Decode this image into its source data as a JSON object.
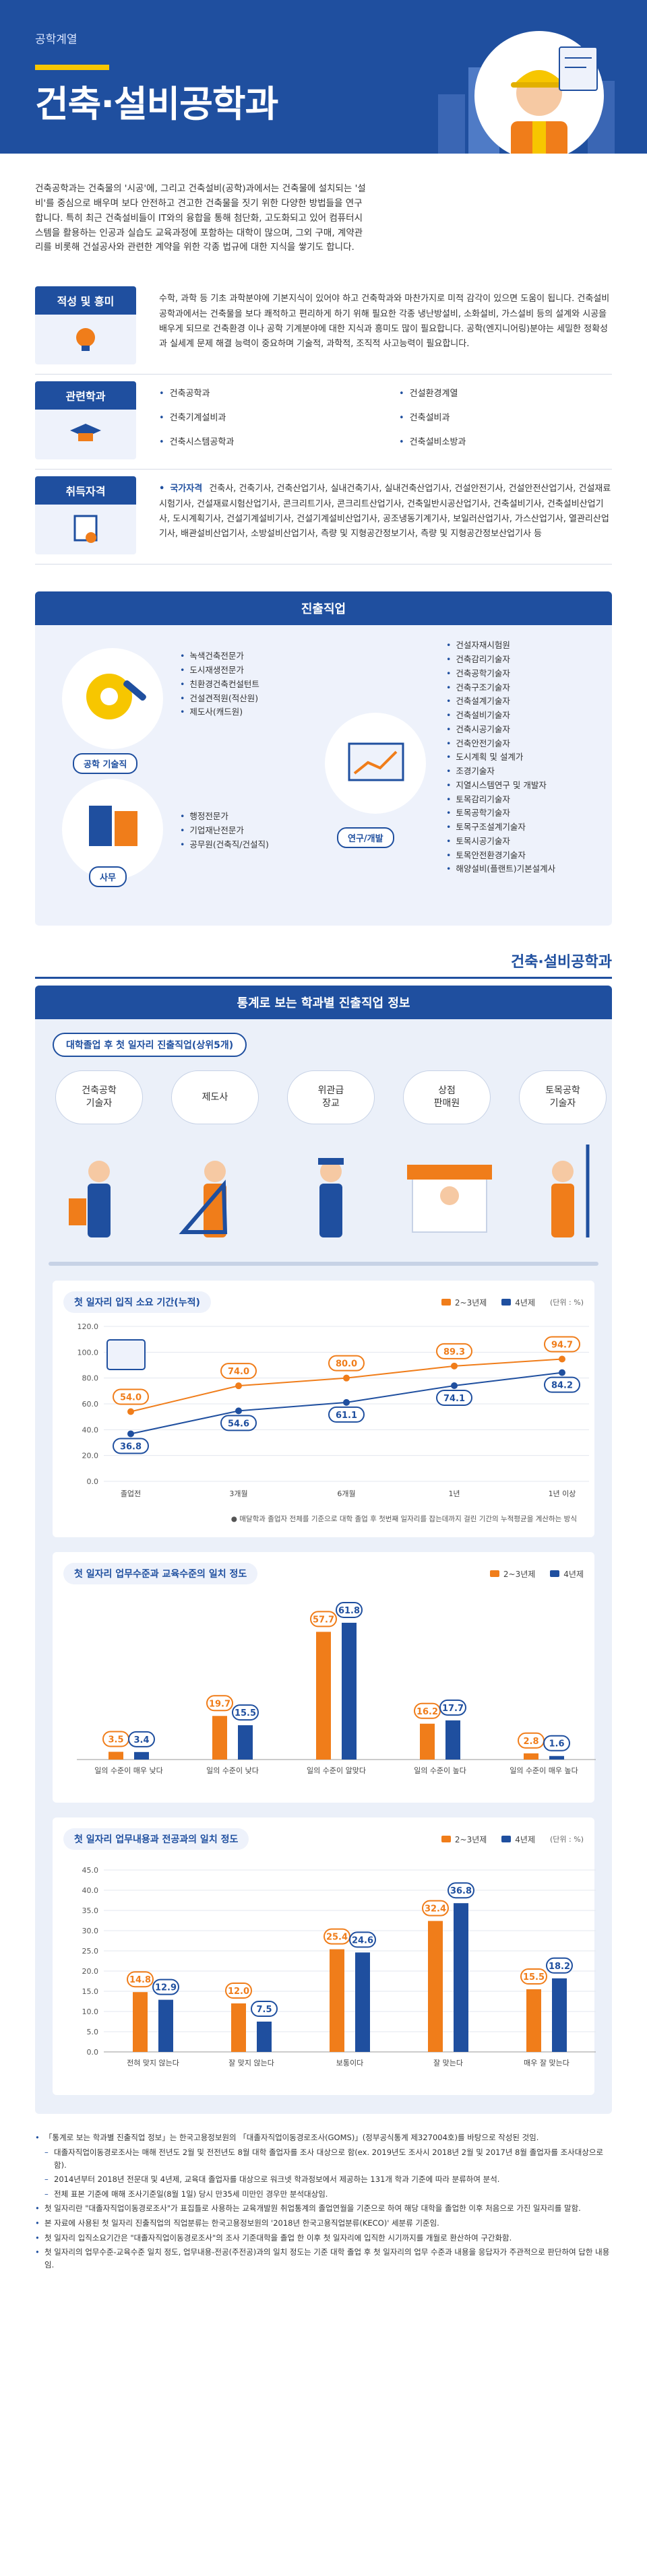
{
  "header": {
    "category": "공학계열",
    "title": "건축·설비공학과"
  },
  "intro": "건축공학과는 건축물의 '시공'에, 그리고 건축설비(공학)과에서는 건축물에 설치되는 '설비'를 중심으로 배우며 보다 안전하고 견고한 건축물을 짓기 위한 다양한 방법들을 연구합니다. 특히 최근 건축설비들이 IT와의 융합을 통해 첨단화, 고도화되고 있어 컴퓨터시스템을 활용하는 인공과 실습도 교육과정에 포함하는 대학이 많으며, 그외 구매, 계약관리를 비롯해 건설공사와 관련한 계약을 위한 각종 법규에 대한 지식을 쌓기도 합니다.",
  "info": {
    "aptitude": {
      "label": "적성 및 흥미",
      "text": "수학, 과학 등 기초 과학분야에 기본지식이 있어야 하고 건축학과와 마찬가지로 미적 감각이 있으면 도움이 됩니다. 건축설비공학과에서는 건축물을 보다 쾌적하고 편리하게 하기 위해 필요한 각종 냉난방설비, 소화설비, 가스설비 등의 설계와 시공을 배우게 되므로 건축환경 이나 공학 기계분야에 대한 지식과 흥미도 많이 필요합니다. 공학(엔지니어링)분야는 세밀한 정확성과 실세계 문제 해결 능력이 중요하며 기술적, 과학적, 조직적 사고능력이 필요합니다."
    },
    "related": {
      "label": "관련학과",
      "items": [
        "건축공학과",
        "건설환경계열",
        "건축기계설비과",
        "건축설비과",
        "건축시스템공학과",
        "건축설비소방과"
      ]
    },
    "license": {
      "label": "취득자격",
      "prefix": "국가자격",
      "text": "건축사, 건축기사, 건축산업기사, 실내건축기사, 실내건축산업기사, 건설안전기사, 건설안전산업기사, 건설재료시험기사, 건설재료시험산업기사, 콘크리트기사, 콘크리트산업기사, 건축일반시공산업기사, 건축설비기사, 건축설비산업기사, 도시계획기사, 건설기계설비기사, 건설기계설비산업기사, 공조냉동기계기사, 보일러산업기사, 가스산업기사, 열관리산업기사, 배관설비산업기사, 소방설비산업기사, 측량 및 지형공간정보기사, 측량 및 지형공간정보산업기사 등"
    }
  },
  "career": {
    "title": "진출직업",
    "groups": [
      {
        "label": "공학 기술직",
        "items": [
          "녹색건축전문가",
          "도시재생전문가",
          "친환경건축컨설턴트",
          "건설견적원(적산원)",
          "제도사(캐드원)"
        ]
      },
      {
        "label": "사무",
        "items": [
          "행정전문가",
          "기업재난전문가",
          "공무원(건축직/건설직)"
        ]
      },
      {
        "label": "연구/개발",
        "items": [
          "건설자재시험원",
          "건축감리기술자",
          "건축공학기술자",
          "건축구조기술자",
          "건축설계기술자",
          "건축설비기술자",
          "건축시공기술자",
          "건축안전기술자",
          "도시계획 및 설계가",
          "조경기술자",
          "지열시스템연구 및 개발자",
          "토목감리기술자",
          "토목공학기술자",
          "토목구조설계기술자",
          "토목시공기술자",
          "토목안전환경기술자",
          "해양설비(플랜트)기본설계사"
        ]
      }
    ]
  },
  "stats": {
    "brand": "건축·설비공학과",
    "title": "통계로 보는 학과별 진출직업 정보",
    "top_jobs_title": "대학졸업 후 첫 일자리 진출직업(상위5개)",
    "top_jobs": [
      "건축공학\n기술자",
      "제도사",
      "위관급\n장교",
      "상점\n판매원",
      "토목공학\n기술자"
    ],
    "legend": {
      "a": "2~3년제",
      "b": "4년제",
      "unit": "(단위 : %)"
    },
    "colors": {
      "a": "#f07d1a",
      "b": "#1f4f9f"
    },
    "note1": "● 매달학과 졸업자 전체를 기준으로 대학 졸업 후 첫번째 일자리를 잡는데까지 걸린 기간의 누적평균을 계산하는 방식",
    "chart1_title": "첫 일자리 입직 소요 기간(누적)",
    "chart2_title": "첫 일자리 업무수준과 교육수준의 일치 정도",
    "chart3_title": "첫 일자리 업무내용과 전공과의 일치 정도"
  },
  "chart_data": [
    {
      "type": "line",
      "title": "첫 일자리 입직 소요 기간(누적)",
      "categories": [
        "졸업전",
        "3개월",
        "6개월",
        "1년",
        "1년 이상"
      ],
      "ylim": [
        0,
        120
      ],
      "yticks": [
        "0.0",
        "20.0",
        "40.0",
        "60.0",
        "80.0",
        "100.0",
        "120.0"
      ],
      "series": [
        {
          "name": "2~3년제",
          "values": [
            54.0,
            74.0,
            80.0,
            89.3,
            94.7
          ]
        },
        {
          "name": "4년제",
          "values": [
            36.8,
            54.6,
            61.1,
            74.1,
            84.2
          ]
        }
      ]
    },
    {
      "type": "bar",
      "title": "첫 일자리 업무수준과 교육수준의 일치 정도",
      "categories": [
        "일의 수준이 매우 낮다",
        "일의 수준이 낮다",
        "일의 수준이 알맞다",
        "일의 수준이 높다",
        "일의 수준이 매우 높다"
      ],
      "ylim": [
        0,
        70
      ],
      "series": [
        {
          "name": "2~3년제",
          "values": [
            3.5,
            19.7,
            57.7,
            16.2,
            2.8
          ]
        },
        {
          "name": "4년제",
          "values": [
            3.4,
            15.5,
            61.8,
            17.7,
            1.6
          ]
        }
      ]
    },
    {
      "type": "bar",
      "title": "첫 일자리 업무내용과 전공과의 일치 정도",
      "categories": [
        "전혀 맞지 않는다",
        "잘 맞지 않는다",
        "보통이다",
        "잘 맞는다",
        "매우 잘 맞는다"
      ],
      "ylim": [
        0,
        45
      ],
      "yticks": [
        "0.0",
        "5.0",
        "10.0",
        "15.0",
        "20.0",
        "25.0",
        "30.0",
        "35.0",
        "40.0",
        "45.0"
      ],
      "series": [
        {
          "name": "2~3년제",
          "values": [
            14.8,
            12.0,
            25.4,
            32.4,
            15.5
          ]
        },
        {
          "name": "4년제",
          "values": [
            12.9,
            7.5,
            24.6,
            36.8,
            18.2
          ]
        }
      ]
    }
  ],
  "footnotes": [
    {
      "level": 0,
      "text": "「통계로 보는 학과별 진출직업 정보」는 한국고용정보원의 「대졸자직업이동경로조사(GOMS)」(정부공식통계 제327004호)를 바탕으로 작성된 것임."
    },
    {
      "level": 1,
      "text": "대졸자직업이동경로조사는 매해 전년도 2월 및 전전년도 8월 대학 졸업자를 조사 대상으로 함(ex. 2019년도 조사시 2018년 2월 및 2017년 8월 졸업자를 조사대상으로 함)."
    },
    {
      "level": 1,
      "text": "2014년부터 2018년 전문대 및 4년제, 교육대 졸업자를 대상으로 워크넷 학과정보에서 제공하는 131개 학과 기준에 따라 분류하여 분석."
    },
    {
      "level": 1,
      "text": "전체 표본 기준에 매해 조사기준일(8월 1일) 당시 만35세 미만인 경우만 분석대상임."
    },
    {
      "level": 0,
      "text": "첫 일자리란 \"대졸자직업이동경로조사\"가 표집틀로 사용하는 교육개발원 취업통계의 졸업연월을 기준으로 하여 해당 대학을 졸업한 이후 처음으로 가진 일자리를 말함."
    },
    {
      "level": 0,
      "text": "본 자료에 사용된 첫 일자리 진출직업의 직업분류는 한국고용정보원의 '2018년 한국고용직업분류(KECO)' 세분류 기준임."
    },
    {
      "level": 0,
      "text": "첫 일자리 입직소요기간은 \"대졸자직업이동경로조사\"의 조사 기준대학을 졸업 한 이후 첫 일자리에 입직한 시기까지를 개월로 환산하여 구간화함."
    },
    {
      "level": 0,
      "text": "첫 일자리의 업무수준-교육수준 일치 정도, 업무내용-전공(주전공)과의 일치 정도는 기준 대학 졸업 후 첫 일자리의 업무 수준과 내용을 응답자가 주관적으로 판단하여 답한 내용임."
    }
  ]
}
